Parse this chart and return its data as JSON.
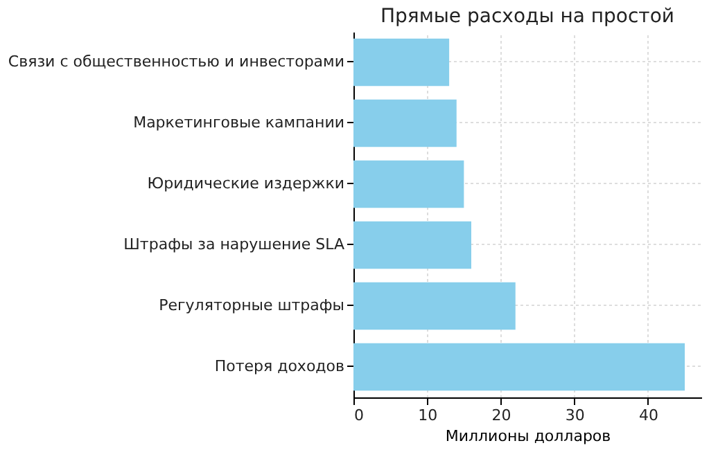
{
  "chart_data": {
    "type": "bar",
    "orientation": "horizontal",
    "title": "Прямые расходы на простой",
    "xlabel": "Миллионы долларов",
    "categories": [
      "Связи с общественностью и инвесторами",
      "Маркетинговые кампании",
      "Юридические издержки",
      "Штрафы за нарушение SLA",
      "Регуляторные штрафы",
      "Потеря доходов"
    ],
    "values": [
      13,
      14,
      15,
      16,
      22,
      45
    ],
    "color": "#87ceeb",
    "xlim": [
      0,
      47.25
    ],
    "xticks": [
      0,
      10,
      20,
      30,
      40
    ],
    "grid": true
  }
}
